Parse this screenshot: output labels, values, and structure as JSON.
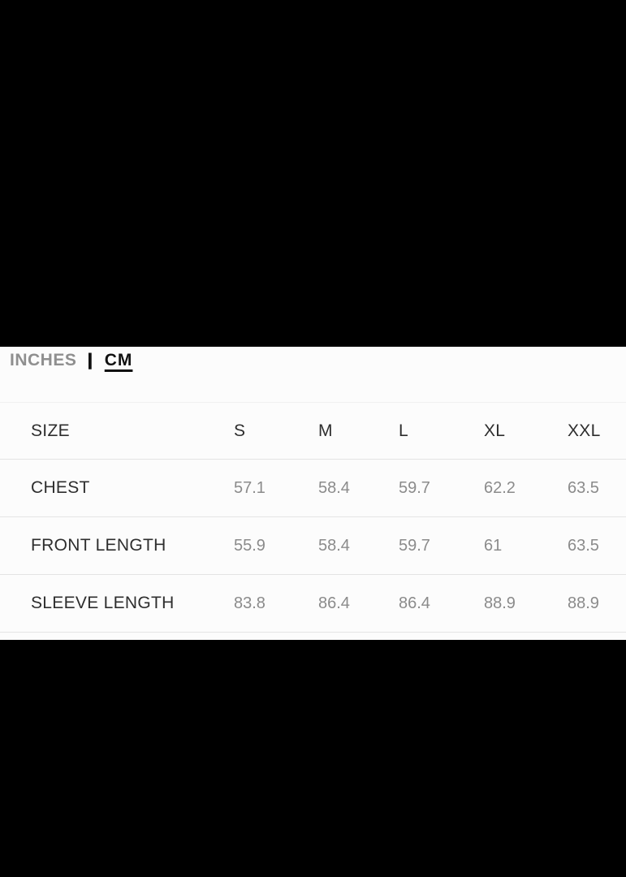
{
  "unit_toggle": {
    "inches_label": "INCHES",
    "separator": "|",
    "cm_label": "CM",
    "selected_unit": "CM"
  },
  "table": {
    "header": [
      "SIZE",
      "S",
      "M",
      "L",
      "XL",
      "XXL"
    ],
    "rows": [
      {
        "label": "CHEST",
        "values": [
          "57.1",
          "58.4",
          "59.7",
          "62.2",
          "63.5"
        ]
      },
      {
        "label": "FRONT LENGTH",
        "values": [
          "55.9",
          "58.4",
          "59.7",
          "61",
          "63.5"
        ]
      },
      {
        "label": "SLEEVE LENGTH",
        "values": [
          "83.8",
          "86.4",
          "86.4",
          "88.9",
          "88.9"
        ]
      }
    ]
  },
  "colors": {
    "background": "#000000",
    "panel": "#fcfcfc",
    "label_text": "#2e2e2e",
    "value_text": "#8b8b8b",
    "inactive_unit": "#8f8f8f",
    "active_unit": "#111111",
    "divider": "#e4e4e4"
  }
}
